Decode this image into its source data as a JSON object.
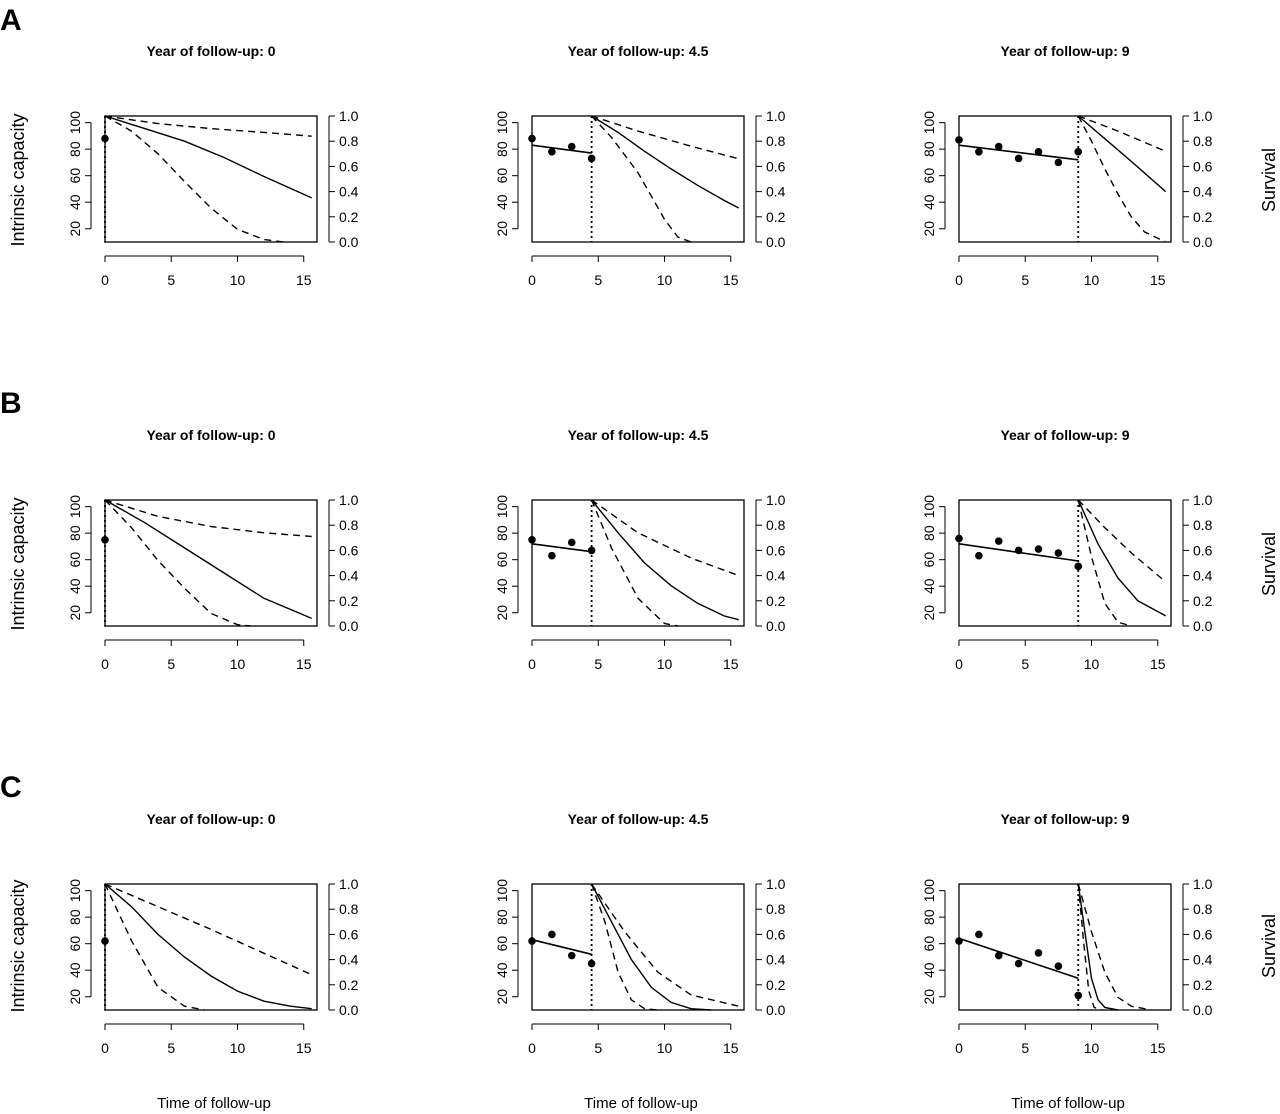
{
  "figure": {
    "rows": [
      {
        "letter": "A"
      },
      {
        "letter": "B"
      },
      {
        "letter": "C"
      }
    ],
    "left_axis_label": "Intrinsic capacity",
    "right_axis_label": "Survival",
    "x_axis_label": "Time of follow-up"
  },
  "chart_data": [
    {
      "type": "line",
      "row": "A",
      "title": "Year of follow-up: 0",
      "landmark": 0,
      "xlim": [
        0,
        16
      ],
      "xticks": [
        0,
        5,
        10,
        15
      ],
      "ylim_left": [
        10,
        105
      ],
      "yticks_left": [
        20,
        40,
        60,
        80,
        100
      ],
      "ylim_right": [
        0,
        1
      ],
      "yticks_right": [
        0.0,
        0.2,
        0.4,
        0.6,
        0.8,
        1.0
      ],
      "observed": {
        "x": [
          0
        ],
        "y": [
          88
        ]
      },
      "fitted": {
        "x": [],
        "y": []
      },
      "survival": {
        "estimate": {
          "x": [
            0,
            3,
            6,
            9,
            12,
            15.6
          ],
          "y": [
            1.0,
            0.9,
            0.8,
            0.67,
            0.52,
            0.35
          ]
        },
        "lower": {
          "x": [
            0,
            2,
            4,
            6,
            8,
            10,
            12,
            13.5
          ],
          "y": [
            1.0,
            0.88,
            0.7,
            0.48,
            0.27,
            0.1,
            0.02,
            0.0
          ]
        },
        "upper": {
          "x": [
            0,
            4,
            8,
            12,
            15.6
          ],
          "y": [
            1.0,
            0.94,
            0.9,
            0.87,
            0.84
          ]
        }
      }
    },
    {
      "type": "line",
      "row": "A",
      "title": "Year of follow-up: 4.5",
      "landmark": 4.5,
      "xlim": [
        0,
        16
      ],
      "xticks": [
        0,
        5,
        10,
        15
      ],
      "ylim_left": [
        10,
        105
      ],
      "yticks_left": [
        20,
        40,
        60,
        80,
        100
      ],
      "ylim_right": [
        0,
        1
      ],
      "yticks_right": [
        0.0,
        0.2,
        0.4,
        0.6,
        0.8,
        1.0
      ],
      "observed": {
        "x": [
          0,
          1.5,
          3,
          4.5
        ],
        "y": [
          88,
          78,
          82,
          73
        ]
      },
      "fitted": {
        "x": [
          0,
          4.5
        ],
        "y": [
          83,
          77
        ]
      },
      "survival": {
        "estimate": {
          "x": [
            4.5,
            6.5,
            8.5,
            10.5,
            12.5,
            14.5,
            15.6
          ],
          "y": [
            1.0,
            0.87,
            0.72,
            0.58,
            0.45,
            0.33,
            0.27
          ]
        },
        "lower": {
          "x": [
            4.5,
            6,
            8,
            10,
            11,
            12
          ],
          "y": [
            1.0,
            0.83,
            0.55,
            0.18,
            0.04,
            0.0
          ]
        },
        "upper": {
          "x": [
            4.5,
            8,
            12,
            15.6
          ],
          "y": [
            1.0,
            0.88,
            0.76,
            0.66
          ]
        }
      }
    },
    {
      "type": "line",
      "row": "A",
      "title": "Year of follow-up: 9",
      "landmark": 9,
      "xlim": [
        0,
        16
      ],
      "xticks": [
        0,
        5,
        10,
        15
      ],
      "ylim_left": [
        10,
        105
      ],
      "yticks_left": [
        20,
        40,
        60,
        80,
        100
      ],
      "ylim_right": [
        0,
        1
      ],
      "yticks_right": [
        0.0,
        0.2,
        0.4,
        0.6,
        0.8,
        1.0
      ],
      "observed": {
        "x": [
          0,
          1.5,
          3,
          4.5,
          6,
          7.5,
          9
        ],
        "y": [
          87,
          78,
          82,
          73,
          78,
          70,
          78
        ]
      },
      "fitted": {
        "x": [
          0,
          9
        ],
        "y": [
          83,
          72
        ]
      },
      "survival": {
        "estimate": {
          "x": [
            9,
            11,
            13,
            15.6
          ],
          "y": [
            1.0,
            0.82,
            0.64,
            0.4
          ]
        },
        "lower": {
          "x": [
            9,
            10,
            11,
            12,
            13,
            14,
            15.6
          ],
          "y": [
            1.0,
            0.8,
            0.58,
            0.38,
            0.2,
            0.08,
            0.0
          ]
        },
        "upper": {
          "x": [
            9,
            12,
            15.6
          ],
          "y": [
            1.0,
            0.88,
            0.72
          ]
        }
      }
    },
    {
      "type": "line",
      "row": "B",
      "title": "Year of follow-up: 0",
      "landmark": 0,
      "xlim": [
        0,
        16
      ],
      "xticks": [
        0,
        5,
        10,
        15
      ],
      "ylim_left": [
        10,
        105
      ],
      "yticks_left": [
        20,
        40,
        60,
        80,
        100
      ],
      "ylim_right": [
        0,
        1
      ],
      "yticks_right": [
        0.0,
        0.2,
        0.4,
        0.6,
        0.8,
        1.0
      ],
      "observed": {
        "x": [
          0
        ],
        "y": [
          75
        ]
      },
      "fitted": {
        "x": [],
        "y": []
      },
      "survival": {
        "estimate": {
          "x": [
            0,
            3,
            6,
            9,
            12,
            15.6
          ],
          "y": [
            1.0,
            0.82,
            0.62,
            0.42,
            0.22,
            0.06
          ]
        },
        "lower": {
          "x": [
            0,
            2,
            4,
            6,
            8,
            10,
            11
          ],
          "y": [
            1.0,
            0.78,
            0.52,
            0.3,
            0.1,
            0.01,
            0.0
          ]
        },
        "upper": {
          "x": [
            0,
            4,
            8,
            12,
            15.6
          ],
          "y": [
            1.0,
            0.87,
            0.79,
            0.74,
            0.71
          ]
        }
      }
    },
    {
      "type": "line",
      "row": "B",
      "title": "Year of follow-up: 4.5",
      "landmark": 4.5,
      "xlim": [
        0,
        16
      ],
      "xticks": [
        0,
        5,
        10,
        15
      ],
      "ylim_left": [
        10,
        105
      ],
      "yticks_left": [
        20,
        40,
        60,
        80,
        100
      ],
      "ylim_right": [
        0,
        1
      ],
      "yticks_right": [
        0.0,
        0.2,
        0.4,
        0.6,
        0.8,
        1.0
      ],
      "observed": {
        "x": [
          0,
          1.5,
          3,
          4.5
        ],
        "y": [
          75,
          63,
          73,
          67
        ]
      },
      "fitted": {
        "x": [
          0,
          4.5
        ],
        "y": [
          72,
          66
        ]
      },
      "survival": {
        "estimate": {
          "x": [
            4.5,
            6.5,
            8.5,
            10.5,
            12.5,
            14.5,
            15.6
          ],
          "y": [
            1.0,
            0.74,
            0.5,
            0.32,
            0.18,
            0.08,
            0.05
          ]
        },
        "lower": {
          "x": [
            4.5,
            6,
            8,
            10,
            11
          ],
          "y": [
            1.0,
            0.62,
            0.22,
            0.02,
            0.0
          ]
        },
        "upper": {
          "x": [
            4.5,
            8,
            12,
            15.6
          ],
          "y": [
            1.0,
            0.74,
            0.54,
            0.4
          ]
        }
      }
    },
    {
      "type": "line",
      "row": "B",
      "title": "Year of follow-up: 9",
      "landmark": 9,
      "xlim": [
        0,
        16
      ],
      "xticks": [
        0,
        5,
        10,
        15
      ],
      "ylim_left": [
        10,
        105
      ],
      "yticks_left": [
        20,
        40,
        60,
        80,
        100
      ],
      "ylim_right": [
        0,
        1
      ],
      "yticks_right": [
        0.0,
        0.2,
        0.4,
        0.6,
        0.8,
        1.0
      ],
      "observed": {
        "x": [
          0,
          1.5,
          3,
          4.5,
          6,
          7.5,
          9
        ],
        "y": [
          76,
          63,
          74,
          67,
          68,
          65,
          55
        ]
      },
      "fitted": {
        "x": [
          0,
          9
        ],
        "y": [
          72,
          59
        ]
      },
      "survival": {
        "estimate": {
          "x": [
            9,
            10.5,
            12,
            13.5,
            15.6
          ],
          "y": [
            1.0,
            0.65,
            0.38,
            0.2,
            0.08
          ]
        },
        "lower": {
          "x": [
            9,
            10,
            11,
            12,
            13
          ],
          "y": [
            1.0,
            0.55,
            0.18,
            0.03,
            0.0
          ]
        },
        "upper": {
          "x": [
            9,
            11,
            13,
            15.6
          ],
          "y": [
            1.0,
            0.78,
            0.58,
            0.35
          ]
        }
      }
    },
    {
      "type": "line",
      "row": "C",
      "title": "Year of follow-up: 0",
      "landmark": 0,
      "xlim": [
        0,
        16
      ],
      "xticks": [
        0,
        5,
        10,
        15
      ],
      "ylim_left": [
        10,
        105
      ],
      "yticks_left": [
        20,
        40,
        60,
        80,
        100
      ],
      "ylim_right": [
        0,
        1
      ],
      "yticks_right": [
        0.0,
        0.2,
        0.4,
        0.6,
        0.8,
        1.0
      ],
      "observed": {
        "x": [
          0
        ],
        "y": [
          62
        ]
      },
      "fitted": {
        "x": [],
        "y": []
      },
      "survival": {
        "estimate": {
          "x": [
            0,
            2,
            4,
            6,
            8,
            10,
            12,
            14,
            15.6
          ],
          "y": [
            1.0,
            0.82,
            0.6,
            0.42,
            0.27,
            0.15,
            0.07,
            0.03,
            0.01
          ]
        },
        "lower": {
          "x": [
            0,
            2,
            4,
            6,
            7.5
          ],
          "y": [
            1.0,
            0.55,
            0.18,
            0.03,
            0.0
          ]
        },
        "upper": {
          "x": [
            0,
            4,
            8,
            12,
            15.6
          ],
          "y": [
            1.0,
            0.82,
            0.64,
            0.45,
            0.28
          ]
        }
      }
    },
    {
      "type": "line",
      "row": "C",
      "title": "Year of follow-up: 4.5",
      "landmark": 4.5,
      "xlim": [
        0,
        16
      ],
      "xticks": [
        0,
        5,
        10,
        15
      ],
      "ylim_left": [
        10,
        105
      ],
      "yticks_left": [
        20,
        40,
        60,
        80,
        100
      ],
      "ylim_right": [
        0,
        1
      ],
      "yticks_right": [
        0.0,
        0.2,
        0.4,
        0.6,
        0.8,
        1.0
      ],
      "observed": {
        "x": [
          0,
          1.5,
          3,
          4.5
        ],
        "y": [
          62,
          67,
          51,
          45
        ]
      },
      "fitted": {
        "x": [
          0,
          4.5
        ],
        "y": [
          63,
          52
        ]
      },
      "survival": {
        "estimate": {
          "x": [
            4.5,
            6,
            7.5,
            9,
            10.5,
            12,
            13.5
          ],
          "y": [
            1.0,
            0.7,
            0.4,
            0.18,
            0.06,
            0.01,
            0.0
          ]
        },
        "lower": {
          "x": [
            4.5,
            5.5,
            6.5,
            7.5,
            8.5,
            9.5
          ],
          "y": [
            1.0,
            0.7,
            0.3,
            0.08,
            0.01,
            0.0
          ]
        },
        "upper": {
          "x": [
            4.5,
            7,
            9.5,
            12,
            15.6
          ],
          "y": [
            1.0,
            0.62,
            0.3,
            0.12,
            0.03
          ]
        }
      }
    },
    {
      "type": "line",
      "row": "C",
      "title": "Year of follow-up: 9",
      "landmark": 9,
      "xlim": [
        0,
        16
      ],
      "xticks": [
        0,
        5,
        10,
        15
      ],
      "ylim_left": [
        10,
        105
      ],
      "yticks_left": [
        20,
        40,
        60,
        80,
        100
      ],
      "ylim_right": [
        0,
        1
      ],
      "yticks_right": [
        0.0,
        0.2,
        0.4,
        0.6,
        0.8,
        1.0
      ],
      "observed": {
        "x": [
          0,
          1.5,
          3,
          4.5,
          6,
          7.5,
          9
        ],
        "y": [
          62,
          67,
          51,
          45,
          53,
          43,
          21
        ]
      },
      "fitted": {
        "x": [
          0,
          9
        ],
        "y": [
          64,
          34
        ]
      },
      "survival": {
        "estimate": {
          "x": [
            9,
            9.5,
            10,
            10.5,
            11,
            12
          ],
          "y": [
            1.0,
            0.62,
            0.25,
            0.08,
            0.02,
            0.0
          ]
        },
        "lower": {
          "x": [
            9,
            9.4,
            9.8,
            10.2,
            10.8
          ],
          "y": [
            1.0,
            0.55,
            0.15,
            0.02,
            0.0
          ]
        },
        "upper": {
          "x": [
            9,
            10,
            11,
            12,
            13,
            14.5
          ],
          "y": [
            1.0,
            0.62,
            0.3,
            0.1,
            0.03,
            0.0
          ]
        }
      }
    }
  ]
}
